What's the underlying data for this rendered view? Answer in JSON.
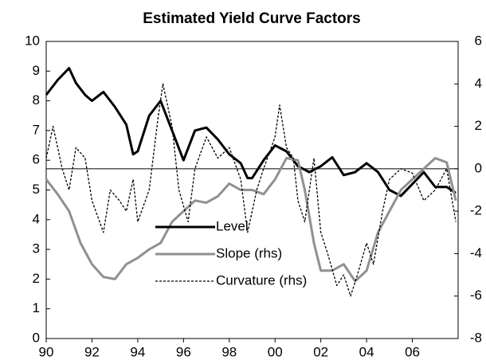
{
  "chart_data": {
    "type": "line",
    "title": "Estimated Yield Curve Factors",
    "xlim": [
      1990,
      2008
    ],
    "xticks": [
      {
        "value": 1990,
        "label": "90"
      },
      {
        "value": 1992,
        "label": "92"
      },
      {
        "value": 1994,
        "label": "94"
      },
      {
        "value": 1996,
        "label": "96"
      },
      {
        "value": 1998,
        "label": "98"
      },
      {
        "value": 2000,
        "label": "00"
      },
      {
        "value": 2002,
        "label": "02"
      },
      {
        "value": 2004,
        "label": "04"
      },
      {
        "value": 2006,
        "label": "06"
      }
    ],
    "ylim": [
      0,
      10
    ],
    "yticks": [
      0,
      1,
      2,
      3,
      4,
      5,
      6,
      7,
      8,
      9,
      10
    ],
    "y2lim": [
      -8,
      6
    ],
    "y2ticks": [
      -8,
      -6,
      -4,
      -2,
      0,
      2,
      4,
      6
    ],
    "y2_reference_line": 0,
    "legend_loc": "lower center",
    "series": [
      {
        "name": "Level",
        "color": "#000000",
        "style": "solid",
        "width": 3,
        "x": [
          1990,
          1990.5,
          1991,
          1991.3,
          1991.7,
          1992,
          1992.5,
          1993,
          1993.5,
          1993.8,
          1994,
          1994.5,
          1995,
          1995.5,
          1996,
          1996.5,
          1997,
          1997.5,
          1998,
          1998.5,
          1998.8,
          1999,
          1999.5,
          2000,
          2000.5,
          2001,
          2001.5,
          2002,
          2002.5,
          2003,
          2003.5,
          2004,
          2004.5,
          2005,
          2005.5,
          2006,
          2006.5,
          2007,
          2007.5,
          2007.9
        ],
        "values": [
          8.2,
          8.7,
          9.1,
          8.6,
          8.2,
          8.0,
          8.3,
          7.8,
          7.2,
          6.2,
          6.3,
          7.5,
          8.0,
          7.0,
          6.0,
          7.0,
          7.1,
          6.7,
          6.2,
          5.9,
          5.4,
          5.4,
          6.0,
          6.5,
          6.3,
          5.8,
          5.6,
          5.8,
          6.1,
          5.5,
          5.6,
          5.9,
          5.6,
          5.0,
          4.8,
          5.2,
          5.6,
          5.1,
          5.1,
          4.9
        ]
      },
      {
        "name": "Slope (rhs)",
        "color": "#909090",
        "style": "solid",
        "width": 3,
        "axis": "y2",
        "x": [
          1990,
          1990.5,
          1991,
          1991.5,
          1992,
          1992.5,
          1993,
          1993.5,
          1994,
          1994.5,
          1995,
          1995.5,
          1996,
          1996.5,
          1997,
          1997.5,
          1998,
          1998.5,
          1999,
          1999.5,
          2000,
          2000.5,
          2001,
          2001.3,
          2001.7,
          2002,
          2002.5,
          2003,
          2003.5,
          2004,
          2004.5,
          2005,
          2005.5,
          2006,
          2006.5,
          2007,
          2007.5,
          2007.9
        ],
        "values": [
          -0.5,
          -1.2,
          -2.0,
          -3.5,
          -4.5,
          -5.1,
          -5.2,
          -4.5,
          -4.2,
          -3.8,
          -3.5,
          -2.5,
          -2.0,
          -1.5,
          -1.6,
          -1.3,
          -0.7,
          -1.0,
          -1.0,
          -1.2,
          -0.5,
          0.5,
          0.4,
          -1.0,
          -3.5,
          -4.8,
          -4.8,
          -4.5,
          -5.3,
          -4.8,
          -3.0,
          -2.0,
          -1.0,
          -0.5,
          0.0,
          0.5,
          0.3,
          -1.5
        ]
      },
      {
        "name": "Curvature (rhs)",
        "color": "#000000",
        "style": "dotted",
        "width": 1.3,
        "axis": "y2",
        "x": [
          1990,
          1990.3,
          1990.7,
          1991,
          1991.3,
          1991.7,
          1992,
          1992.5,
          1992.8,
          1993.2,
          1993.5,
          1993.8,
          1994,
          1994.5,
          1994.9,
          1995.1,
          1995.5,
          1995.8,
          1996.2,
          1996.5,
          1997,
          1997.5,
          1998,
          1998.5,
          1998.8,
          1999.2,
          1999.5,
          2000,
          2000.2,
          2000.5,
          2000.8,
          2001,
          2001.3,
          2001.7,
          2002,
          2002.3,
          2002.7,
          2003,
          2003.3,
          2003.6,
          2004,
          2004.3,
          2004.7,
          2005,
          2005.5,
          2006,
          2006.5,
          2007,
          2007.5,
          2007.9
        ],
        "values": [
          0.5,
          2.0,
          0,
          -1.0,
          1.0,
          0.5,
          -1.5,
          -3.0,
          -1.0,
          -1.5,
          -2.0,
          -0.5,
          -2.5,
          -1.0,
          2.5,
          4.0,
          2.0,
          -1.0,
          -2.5,
          0,
          1.5,
          0.5,
          1.0,
          -0.5,
          -3.0,
          -1.0,
          0,
          1.5,
          3.0,
          1.0,
          0.5,
          -1.5,
          -2.5,
          0.5,
          -3.0,
          -4.0,
          -5.5,
          -5.0,
          -6.0,
          -5.0,
          -3.5,
          -4.5,
          -2.0,
          -0.5,
          0,
          -0.2,
          -1.5,
          -1.0,
          0,
          -2.5
        ]
      }
    ]
  }
}
